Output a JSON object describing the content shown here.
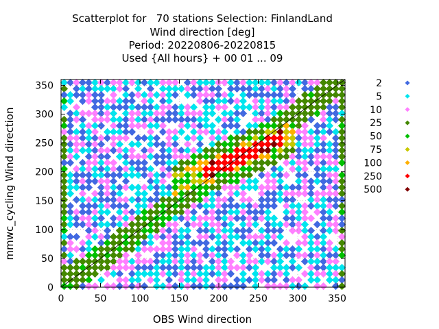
{
  "chart_data": {
    "type": "scatter",
    "title": "Scatterplot for   70 stations Selection: FinlandLand",
    "subtitle": [
      "Wind direction [deg]",
      "Period: 20220806-20220815",
      "Used {All hours} + 00 01 ... 09"
    ],
    "xlabel": "OBS Wind direction",
    "ylabel": "mmwc_cycling Wind direction",
    "xlim": [
      0,
      360
    ],
    "ylim": [
      0,
      360
    ],
    "xticks": [
      "0",
      "50",
      "100",
      "150",
      "200",
      "250",
      "300",
      "350"
    ],
    "yticks": [
      "0",
      "50",
      "100",
      "150",
      "200",
      "250",
      "300",
      "350"
    ],
    "grid": true,
    "diagonal": true,
    "legend_position": "right",
    "legend": [
      {
        "label": "2",
        "color": "#4169e1"
      },
      {
        "label": "5",
        "color": "#00e5ee"
      },
      {
        "label": "10",
        "color": "#ff80ff"
      },
      {
        "label": "25",
        "color": "#448800"
      },
      {
        "label": "50",
        "color": "#00c000"
      },
      {
        "label": "75",
        "color": "#c8c800"
      },
      {
        "label": "100",
        "color": "#ffb000"
      },
      {
        "label": "250",
        "color": "#ff0000"
      },
      {
        "label": "500",
        "color": "#800000"
      }
    ]
  }
}
